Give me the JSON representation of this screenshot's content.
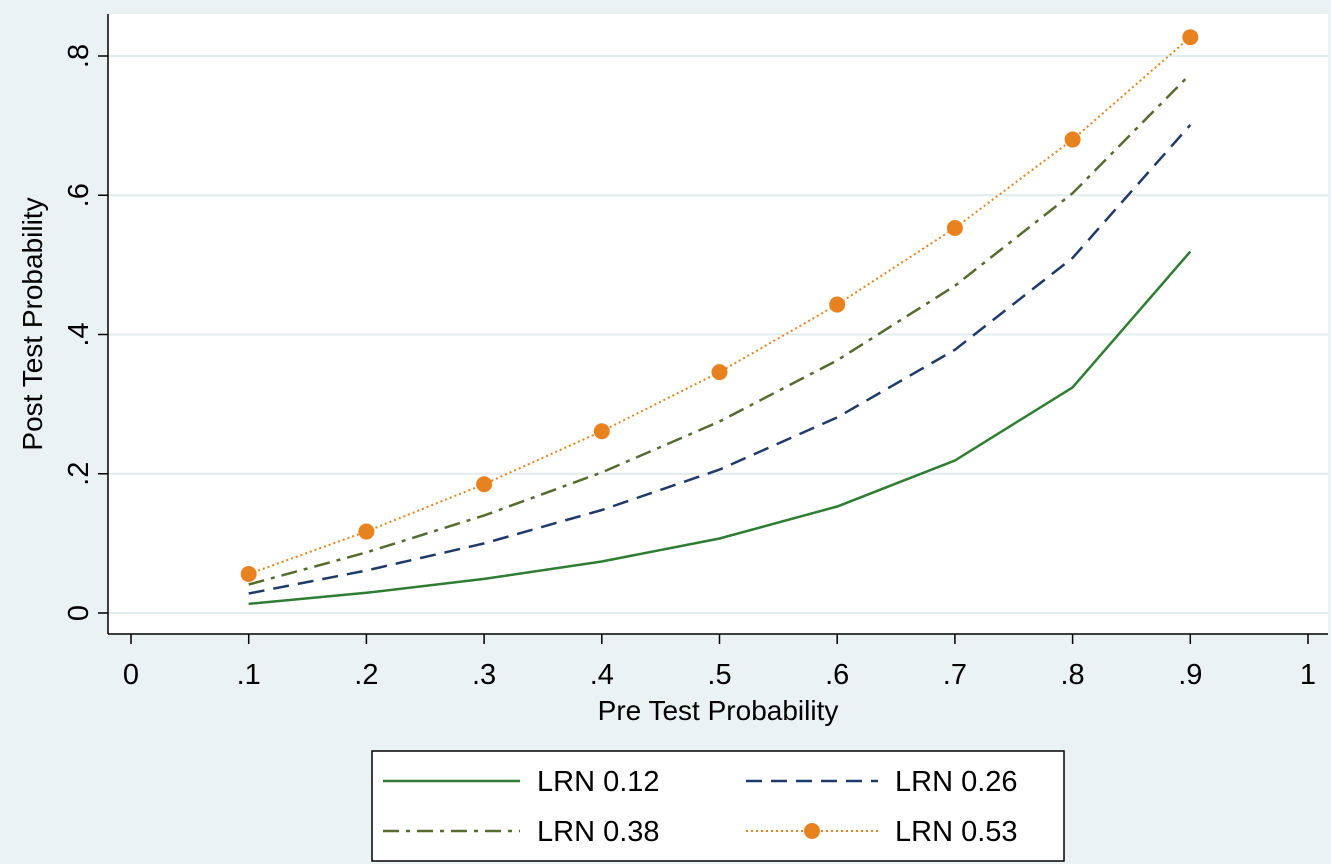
{
  "chart_data": {
    "type": "line",
    "xlabel": "Pre Test Probability",
    "ylabel": "Post Test Probability",
    "xlim": [
      0,
      1
    ],
    "ylim": [
      0,
      0.8
    ],
    "x_ticks": [
      {
        "value": 0,
        "label": "0"
      },
      {
        "value": 0.1,
        "label": ".1"
      },
      {
        "value": 0.2,
        "label": ".2"
      },
      {
        "value": 0.3,
        "label": ".3"
      },
      {
        "value": 0.4,
        "label": ".4"
      },
      {
        "value": 0.5,
        "label": ".5"
      },
      {
        "value": 0.6,
        "label": ".6"
      },
      {
        "value": 0.7,
        "label": ".7"
      },
      {
        "value": 0.8,
        "label": ".8"
      },
      {
        "value": 0.9,
        "label": ".9"
      },
      {
        "value": 1,
        "label": "1"
      }
    ],
    "y_ticks": [
      {
        "value": 0,
        "label": "0"
      },
      {
        "value": 0.2,
        "label": ".2"
      },
      {
        "value": 0.4,
        "label": ".4"
      },
      {
        "value": 0.6,
        "label": ".6"
      },
      {
        "value": 0.8,
        "label": ".8"
      }
    ],
    "grid": true,
    "legend_position": "bottom",
    "x": [
      0.1,
      0.2,
      0.3,
      0.4,
      0.5,
      0.6,
      0.7,
      0.8,
      0.9
    ],
    "series": [
      {
        "name": "LRN 0.12",
        "style": "solid",
        "color": "#2e7d32",
        "markers": false,
        "values": [
          0.013,
          0.029,
          0.049,
          0.074,
          0.107,
          0.153,
          0.219,
          0.324,
          0.519
        ]
      },
      {
        "name": "LRN 0.26",
        "style": "dashed",
        "color": "#1f3a68",
        "markers": false,
        "values": [
          0.028,
          0.061,
          0.1,
          0.148,
          0.206,
          0.281,
          0.378,
          0.51,
          0.701
        ]
      },
      {
        "name": "LRN 0.38",
        "style": "dashdot",
        "color": "#556b2f",
        "markers": false,
        "values": [
          0.041,
          0.087,
          0.14,
          0.202,
          0.275,
          0.363,
          0.47,
          0.603,
          0.774
        ]
      },
      {
        "name": "LRN 0.53",
        "style": "dotted",
        "color": "#e8821e",
        "markers": true,
        "values": [
          0.056,
          0.117,
          0.185,
          0.261,
          0.346,
          0.443,
          0.553,
          0.68,
          0.827
        ]
      }
    ],
    "colors": {
      "background": "#eaf2f3",
      "plot_background": "#ffffff",
      "gridline": "#e1ecee"
    }
  }
}
